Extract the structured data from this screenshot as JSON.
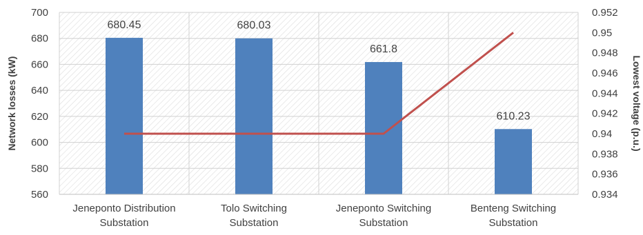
{
  "chart_data": {
    "type": "bar+line",
    "categories": [
      [
        "Jeneponto Distribution",
        "Substation"
      ],
      [
        "Tolo Switching",
        "Substation"
      ],
      [
        "Jeneponto Switching",
        "Substation"
      ],
      [
        "Benteng Switching",
        "Substation"
      ]
    ],
    "bar_series": {
      "values": [
        680.45,
        680.03,
        661.8,
        610.23
      ],
      "labels": [
        "680.45",
        "680.03",
        "661.8",
        "610.23"
      ],
      "color": "#4f81bd"
    },
    "line_series": {
      "values": [
        0.94,
        0.94,
        0.94,
        0.95
      ],
      "color": "#c0504d"
    },
    "ylabel": "Network losses (kW)",
    "ylim": [
      560,
      700
    ],
    "yticks": [
      "560",
      "580",
      "600",
      "620",
      "640",
      "660",
      "680",
      "700"
    ],
    "y2label": "Lowest voltage (p.u.)",
    "y2lim": [
      0.934,
      0.952
    ],
    "y2ticks": [
      "0.934",
      "0.936",
      "0.938",
      "0.94",
      "0.942",
      "0.944",
      "0.946",
      "0.948",
      "0.95",
      "0.952"
    ],
    "grid": true,
    "legend": "none"
  }
}
